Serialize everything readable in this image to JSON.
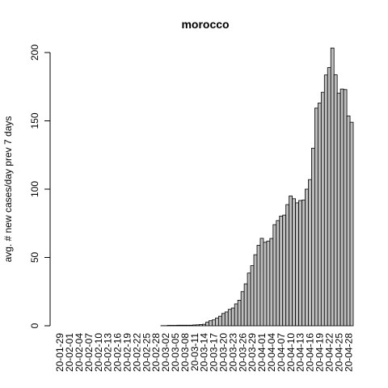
{
  "chart_data": {
    "type": "bar",
    "title": "morocco",
    "ylabel": "avg. # new cases/day prev  7  days",
    "xlabel": "",
    "ylim": [
      0,
      200
    ],
    "yticks": [
      0,
      50,
      100,
      150,
      200
    ],
    "grid": false,
    "start_date": "2020-01-29",
    "x_tick_labels": [
      "20-01-29",
      "20-02-01",
      "20-02-04",
      "20-02-07",
      "20-02-10",
      "20-02-13",
      "20-02-16",
      "20-02-19",
      "20-02-22",
      "20-02-25",
      "20-02-28",
      "20-03-02",
      "20-03-05",
      "20-03-08",
      "20-03-11",
      "20-03-14",
      "20-03-17",
      "20-03-20",
      "20-03-23",
      "20-03-26",
      "20-03-29",
      "20-04-01",
      "20-04-04",
      "20-04-07",
      "20-04-10",
      "20-04-13",
      "20-04-16",
      "20-04-19",
      "20-04-22",
      "20-04-25",
      "20-04-28"
    ],
    "values": [
      0,
      0,
      0,
      0,
      0,
      0,
      0,
      0,
      0,
      0,
      0,
      0,
      0,
      0,
      0,
      0,
      0,
      0,
      0,
      0,
      0,
      0,
      0,
      0,
      0,
      0,
      0,
      0,
      0,
      0,
      0,
      0,
      0.1,
      0.1,
      0.3,
      0.3,
      0.3,
      0.4,
      0.4,
      0.4,
      0.4,
      0.4,
      0.6,
      0.7,
      0.9,
      1.1,
      2.6,
      3.7,
      4.3,
      5.6,
      7,
      9,
      10.1,
      12,
      13,
      16,
      18.7,
      25,
      30.7,
      38.6,
      44,
      52,
      58.9,
      64,
      61.1,
      62,
      63.9,
      74,
      77,
      80.3,
      81,
      88.7,
      95,
      93,
      90,
      91.7,
      92,
      100,
      107,
      130,
      159.3,
      163,
      170.9,
      183.6,
      189,
      203.3,
      183.7,
      170.3,
      173.3,
      172.9,
      153.6,
      149
    ]
  }
}
